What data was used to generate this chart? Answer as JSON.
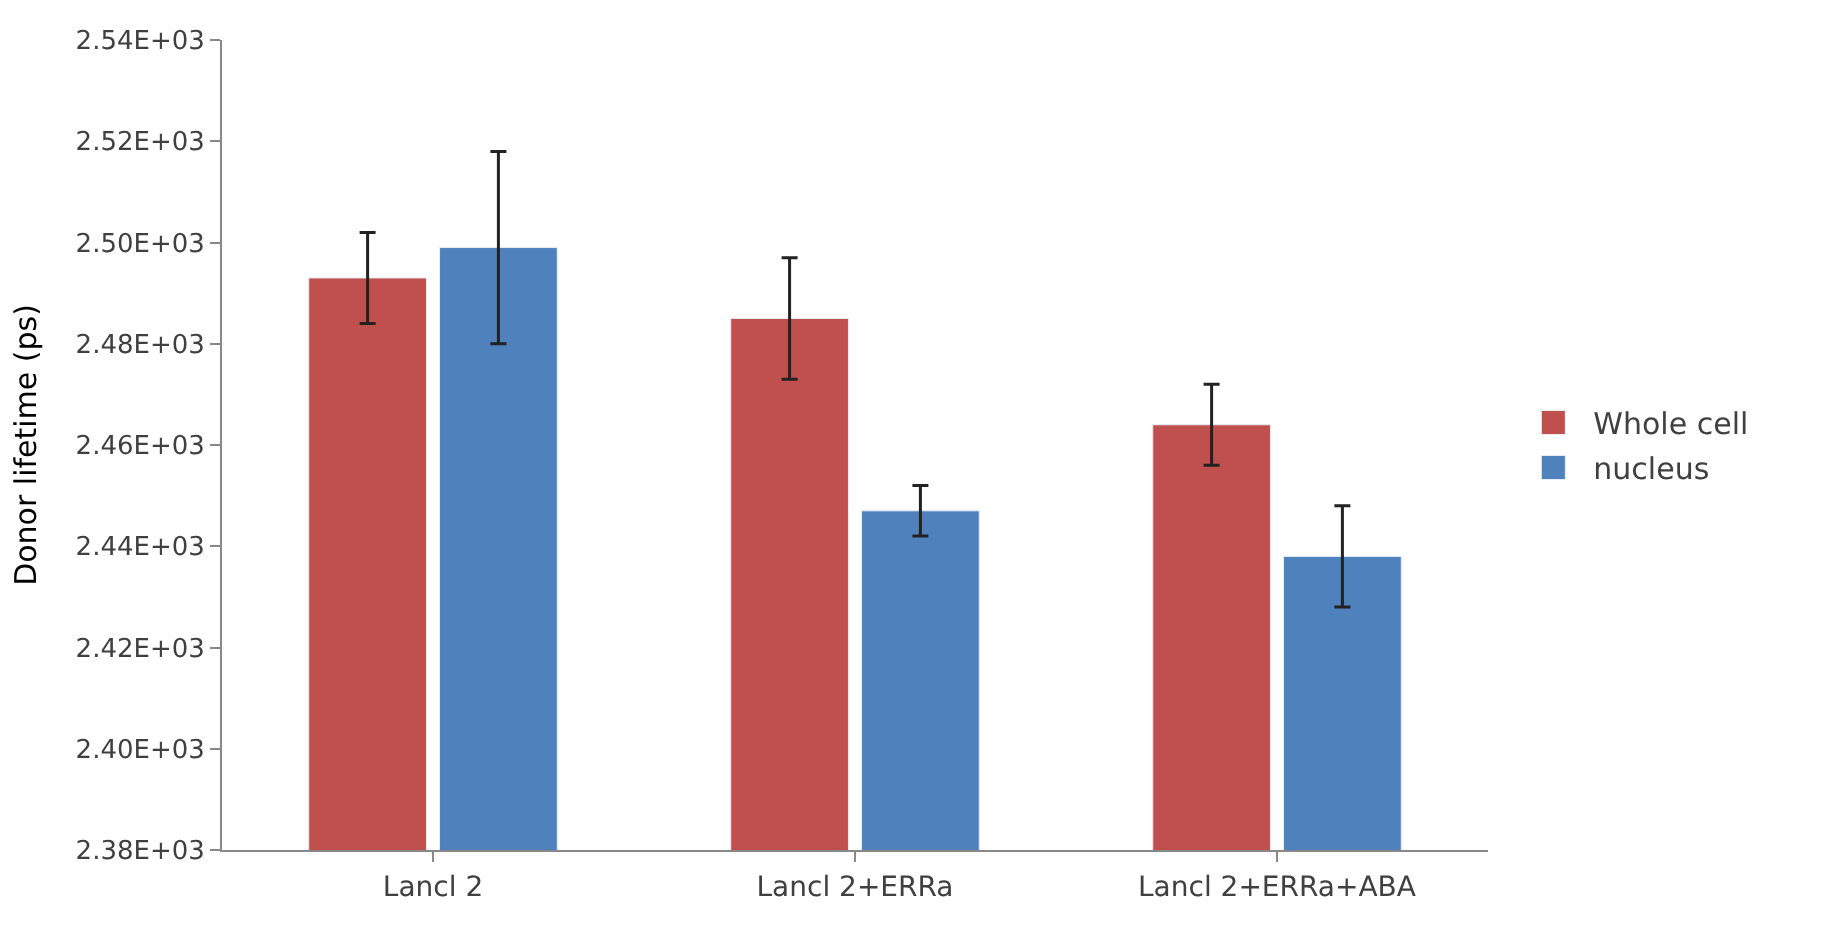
{
  "chart_data": {
    "type": "bar",
    "ylabel": "Donor lifetime (ps)",
    "categories": [
      "Lancl 2",
      "Lancl 2+ERRa",
      "Lancl 2+ERRa+ABA"
    ],
    "series": [
      {
        "name": "Whole cell",
        "color": "#c0504d",
        "values": [
          2493,
          2485,
          2464
        ],
        "errors": [
          9,
          12,
          8
        ]
      },
      {
        "name": "nucleus",
        "color": "#4f81bd",
        "values": [
          2499,
          2447,
          2438
        ],
        "errors": [
          19,
          5,
          10
        ]
      }
    ],
    "ylim": [
      2380,
      2540
    ],
    "yticks": [
      {
        "value": 2380,
        "label": "2.38E+03"
      },
      {
        "value": 2400,
        "label": "2.40E+03"
      },
      {
        "value": 2420,
        "label": "2.42E+03"
      },
      {
        "value": 2440,
        "label": "2.44E+03"
      },
      {
        "value": 2460,
        "label": "2.46E+03"
      },
      {
        "value": 2480,
        "label": "2.48E+03"
      },
      {
        "value": 2500,
        "label": "2.50E+03"
      },
      {
        "value": 2520,
        "label": "2.52E+03"
      },
      {
        "value": 2540,
        "label": "2.54E+03"
      }
    ],
    "legend": "right"
  }
}
